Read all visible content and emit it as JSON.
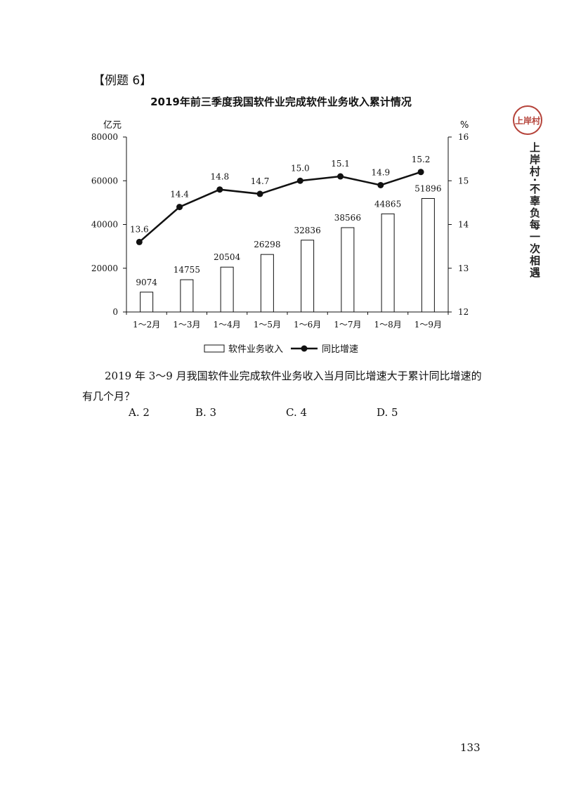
{
  "example_label": "【例题 6】",
  "chart_data": {
    "type": "bar+line",
    "title": "2019年前三季度我国软件业完成软件业务收入累计情况",
    "categories": [
      "1～2月",
      "1～3月",
      "1～4月",
      "1～5月",
      "1～6月",
      "1～7月",
      "1～8月",
      "1～9月"
    ],
    "series": [
      {
        "name": "软件业务收入",
        "type": "bar",
        "axis": "left",
        "values": [
          9074,
          14755,
          20504,
          26298,
          32836,
          38566,
          44865,
          51896
        ]
      },
      {
        "name": "同比增速",
        "type": "line",
        "axis": "right",
        "values": [
          13.6,
          14.4,
          14.8,
          14.7,
          15.0,
          15.1,
          14.9,
          15.2
        ]
      }
    ],
    "left_axis": {
      "unit": "亿元",
      "ylim": [
        0,
        80000
      ],
      "ticks": [
        0,
        20000,
        40000,
        60000,
        80000
      ]
    },
    "right_axis": {
      "unit": "%",
      "ylim": [
        12,
        16
      ],
      "ticks": [
        12,
        13,
        14,
        15,
        16
      ]
    },
    "line_labels": [
      "13.6",
      "14.4",
      "14.8",
      "14.7",
      "15.0",
      "15.1",
      "14.9",
      "15.2"
    ],
    "legend_position": "bottom",
    "grid": false
  },
  "question": {
    "text": "2019 年 3～9 月我国软件业完成软件业务收入当月同比增速大于累计同比增速的有几个月？",
    "options": [
      "A. 2",
      "B. 3",
      "C. 4",
      "D. 5"
    ]
  },
  "side": {
    "seal_text": "上岸村",
    "slogan": "上岸村·不辜负每一次相遇"
  },
  "page_number": "133",
  "colors": {
    "line": "#111111",
    "bar_fill": "#ffffff",
    "bar_stroke": "#111111",
    "seal": "#b5433a"
  }
}
